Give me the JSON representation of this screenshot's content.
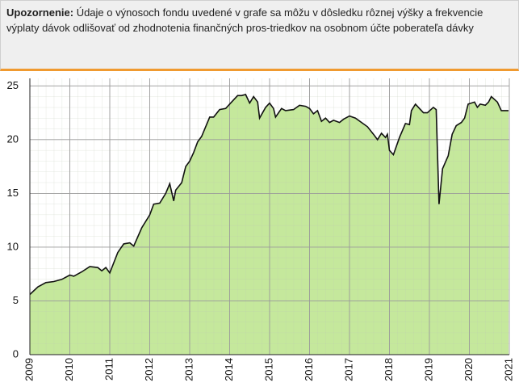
{
  "notice": {
    "label": "Upozornenie:",
    "text": "Údaje o výnosoch fondu uvedené v grafe sa môžu v dôsledku rôznej výšky a frekvencie výplaty dávok odlišovať od zhodnotenia finančných pros-triedkov na osobnom účte poberateľa dávky"
  },
  "chart_data": {
    "type": "area",
    "color": "#c5e89c",
    "line_color": "#111111",
    "grid": true,
    "xlim": [
      2009,
      2021
    ],
    "xticks": [
      2009,
      2010,
      2011,
      2012,
      2013,
      2014,
      2015,
      2016,
      2017,
      2018,
      2019,
      2020,
      2021
    ],
    "ylim": [
      0,
      25.7
    ],
    "yticks": [
      0,
      5,
      10,
      15,
      20,
      25
    ],
    "x": [
      2009.0,
      2009.2,
      2009.4,
      2009.6,
      2009.8,
      2010.0,
      2010.1,
      2010.3,
      2010.5,
      2010.7,
      2010.8,
      2010.9,
      2011.0,
      2011.2,
      2011.35,
      2011.5,
      2011.6,
      2011.8,
      2012.0,
      2012.1,
      2012.25,
      2012.4,
      2012.5,
      2012.6,
      2012.65,
      2012.8,
      2012.9,
      2013.0,
      2013.1,
      2013.2,
      2013.3,
      2013.5,
      2013.6,
      2013.75,
      2013.9,
      2014.0,
      2014.2,
      2014.3,
      2014.4,
      2014.5,
      2014.6,
      2014.7,
      2014.75,
      2014.9,
      2015.0,
      2015.1,
      2015.15,
      2015.3,
      2015.4,
      2015.6,
      2015.75,
      2015.9,
      2016.0,
      2016.1,
      2016.2,
      2016.3,
      2016.4,
      2016.5,
      2016.6,
      2016.75,
      2016.85,
      2017.0,
      2017.15,
      2017.45,
      2017.6,
      2017.7,
      2017.8,
      2017.9,
      2017.95,
      2018.0,
      2018.1,
      2018.25,
      2018.4,
      2018.5,
      2018.55,
      2018.65,
      2018.85,
      2018.95,
      2019.1,
      2019.17,
      2019.24,
      2019.33,
      2019.47,
      2019.57,
      2019.67,
      2019.8,
      2019.88,
      2019.97,
      2020.13,
      2020.2,
      2020.27,
      2020.4,
      2020.48,
      2020.55,
      2020.7,
      2020.8,
      2020.98
    ],
    "values": [
      5.6,
      6.3,
      6.7,
      6.8,
      7.0,
      7.4,
      7.3,
      7.7,
      8.2,
      8.1,
      7.8,
      8.1,
      7.6,
      9.5,
      10.3,
      10.4,
      10.1,
      11.8,
      13.0,
      14.0,
      14.1,
      15.0,
      15.9,
      14.3,
      15.3,
      16.0,
      17.5,
      18.0,
      18.8,
      19.8,
      20.3,
      22.1,
      22.1,
      22.8,
      22.9,
      23.3,
      24.1,
      24.1,
      24.2,
      23.4,
      24.0,
      23.5,
      22.0,
      23.0,
      23.4,
      22.9,
      22.1,
      22.9,
      22.7,
      22.8,
      23.2,
      23.1,
      22.9,
      22.4,
      22.7,
      21.7,
      22.0,
      21.6,
      21.8,
      21.6,
      21.9,
      22.2,
      22.0,
      21.2,
      20.5,
      20.0,
      20.6,
      20.2,
      20.5,
      19.0,
      18.6,
      20.2,
      21.5,
      21.4,
      22.7,
      23.3,
      22.5,
      22.5,
      23.0,
      22.8,
      14.0,
      17.3,
      18.5,
      20.5,
      21.3,
      21.6,
      22.0,
      23.3,
      23.5,
      23.0,
      23.3,
      23.2,
      23.5,
      24.0,
      23.5,
      22.7,
      22.7
    ]
  }
}
